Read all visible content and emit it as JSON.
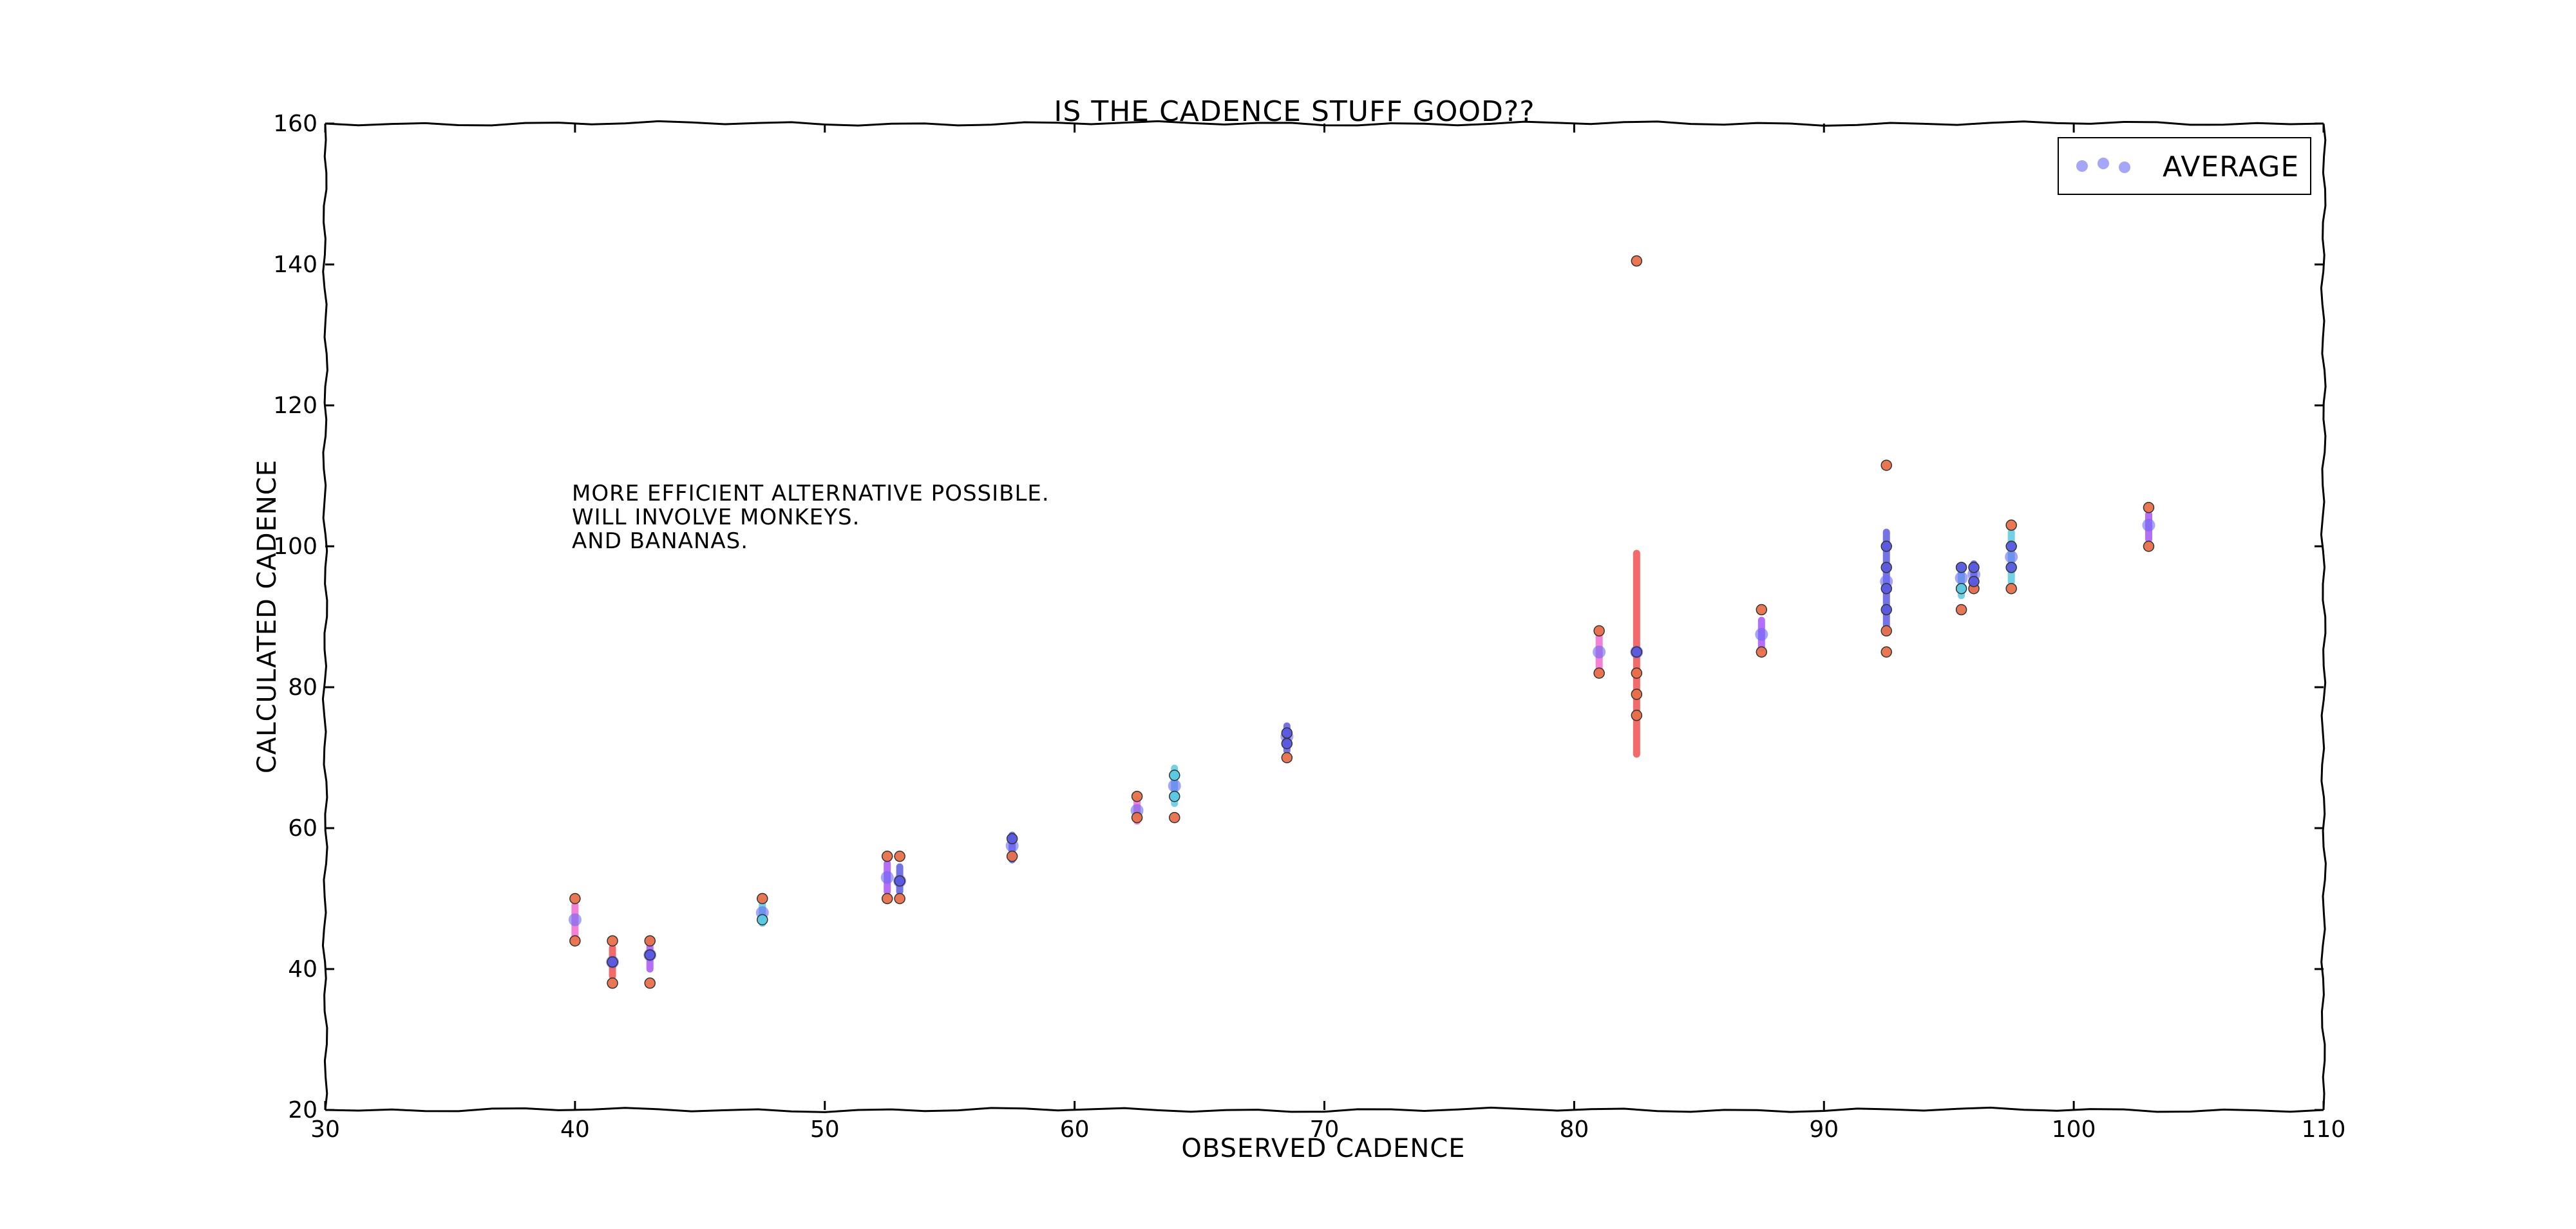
{
  "chart_data": {
    "type": "scatter",
    "title": "IS THE CADENCE STUFF GOOD??",
    "xlabel": "OBSERVED CADENCE",
    "ylabel": "CALCULATED CADENCE",
    "xlim": [
      30,
      110
    ],
    "ylim": [
      20,
      160
    ],
    "xticks": [
      "30",
      "40",
      "50",
      "60",
      "70",
      "80",
      "90",
      "100",
      "110"
    ],
    "yticks": [
      "20",
      "40",
      "60",
      "80",
      "100",
      "120",
      "140",
      "160"
    ],
    "annotation": [
      "MORE EFFICIENT ALTERNATIVE POSSIBLE.",
      "WILL INVOLVE MONKEYS.",
      "AND BANANAS."
    ],
    "legend": {
      "label": "AVERAGE",
      "position": "top-right"
    },
    "series": [
      {
        "name": "AVERAGE",
        "role": "average",
        "color": "#6a6af5",
        "points": [
          {
            "x": 40,
            "y": 47
          },
          {
            "x": 41.5,
            "y": 41
          },
          {
            "x": 43,
            "y": 42
          },
          {
            "x": 47.5,
            "y": 48
          },
          {
            "x": 52.5,
            "y": 53
          },
          {
            "x": 53,
            "y": 52.5
          },
          {
            "x": 57.5,
            "y": 57.5
          },
          {
            "x": 62.5,
            "y": 62.5
          },
          {
            "x": 64,
            "y": 66
          },
          {
            "x": 68.5,
            "y": 73
          },
          {
            "x": 81,
            "y": 85
          },
          {
            "x": 82.5,
            "y": 85
          },
          {
            "x": 87.5,
            "y": 87.5
          },
          {
            "x": 92.5,
            "y": 95
          },
          {
            "x": 95.5,
            "y": 95.5
          },
          {
            "x": 96,
            "y": 96
          },
          {
            "x": 97.5,
            "y": 98.5
          },
          {
            "x": 103,
            "y": 103
          }
        ]
      },
      {
        "name": "",
        "role": "samples",
        "color": "#e8704a",
        "points": [
          {
            "x": 40,
            "y": 50
          },
          {
            "x": 40,
            "y": 44
          },
          {
            "x": 41.5,
            "y": 44
          },
          {
            "x": 41.5,
            "y": 38
          },
          {
            "x": 43,
            "y": 44
          },
          {
            "x": 43,
            "y": 38
          },
          {
            "x": 47.5,
            "y": 50
          },
          {
            "x": 52.5,
            "y": 56
          },
          {
            "x": 52.5,
            "y": 50
          },
          {
            "x": 53,
            "y": 56
          },
          {
            "x": 53,
            "y": 50
          },
          {
            "x": 57.5,
            "y": 56
          },
          {
            "x": 62.5,
            "y": 64.5
          },
          {
            "x": 62.5,
            "y": 61.5
          },
          {
            "x": 64,
            "y": 61.5
          },
          {
            "x": 68.5,
            "y": 70
          },
          {
            "x": 81,
            "y": 88
          },
          {
            "x": 81,
            "y": 82
          },
          {
            "x": 82.5,
            "y": 140.5
          },
          {
            "x": 82.5,
            "y": 82
          },
          {
            "x": 82.5,
            "y": 79
          },
          {
            "x": 82.5,
            "y": 76
          },
          {
            "x": 87.5,
            "y": 91
          },
          {
            "x": 87.5,
            "y": 85
          },
          {
            "x": 92.5,
            "y": 111.5
          },
          {
            "x": 92.5,
            "y": 88
          },
          {
            "x": 92.5,
            "y": 85
          },
          {
            "x": 95.5,
            "y": 91
          },
          {
            "x": 96,
            "y": 94
          },
          {
            "x": 97.5,
            "y": 103
          },
          {
            "x": 97.5,
            "y": 94
          },
          {
            "x": 103,
            "y": 105.5
          },
          {
            "x": 103,
            "y": 100
          }
        ]
      },
      {
        "name": "",
        "role": "blue-samples",
        "color": "#5a5ae0",
        "points": [
          {
            "x": 41.5,
            "y": 41
          },
          {
            "x": 43,
            "y": 42
          },
          {
            "x": 53,
            "y": 52.5
          },
          {
            "x": 57.5,
            "y": 58.5
          },
          {
            "x": 68.5,
            "y": 72
          },
          {
            "x": 68.5,
            "y": 73.5
          },
          {
            "x": 82.5,
            "y": 85
          },
          {
            "x": 92.5,
            "y": 100
          },
          {
            "x": 92.5,
            "y": 97
          },
          {
            "x": 92.5,
            "y": 94
          },
          {
            "x": 92.5,
            "y": 91
          },
          {
            "x": 95.5,
            "y": 97
          },
          {
            "x": 96,
            "y": 97
          },
          {
            "x": 96,
            "y": 95
          },
          {
            "x": 97.5,
            "y": 100
          },
          {
            "x": 97.5,
            "y": 97
          }
        ]
      },
      {
        "name": "",
        "role": "cyan-samples",
        "color": "#5ac8e0",
        "points": [
          {
            "x": 47.5,
            "y": 47
          },
          {
            "x": 64,
            "y": 67.5
          },
          {
            "x": 64,
            "y": 64.5
          },
          {
            "x": 95.5,
            "y": 94
          }
        ]
      },
      {
        "name": "",
        "role": "error-bars",
        "bars": [
          {
            "x": 40,
            "low": 44.5,
            "high": 49,
            "color": "#f06bd0"
          },
          {
            "x": 41.5,
            "low": 39,
            "high": 43,
            "color": "#f05050"
          },
          {
            "x": 43,
            "low": 40,
            "high": 44,
            "color": "#a855f7"
          },
          {
            "x": 47.5,
            "low": 46.5,
            "high": 49.5,
            "color": "#5ac8e0"
          },
          {
            "x": 52.5,
            "low": 51,
            "high": 55,
            "color": "#a855f7"
          },
          {
            "x": 53,
            "low": 51,
            "high": 54.5,
            "color": "#5a5ae0"
          },
          {
            "x": 57.5,
            "low": 55.5,
            "high": 59,
            "color": "#5a5ae0"
          },
          {
            "x": 62.5,
            "low": 61,
            "high": 64,
            "color": "#f06bd0"
          },
          {
            "x": 64,
            "low": 63.5,
            "high": 68.5,
            "color": "#5ac8e0"
          },
          {
            "x": 68.5,
            "low": 71,
            "high": 74.5,
            "color": "#5a5ae0"
          },
          {
            "x": 81,
            "low": 82,
            "high": 88,
            "color": "#f06bd0"
          },
          {
            "x": 82.5,
            "low": 70.5,
            "high": 99,
            "color": "#f05050"
          },
          {
            "x": 87.5,
            "low": 85.5,
            "high": 89.5,
            "color": "#a855f7"
          },
          {
            "x": 92.5,
            "low": 88,
            "high": 102,
            "color": "#5a5ae0"
          },
          {
            "x": 95.5,
            "low": 93,
            "high": 97,
            "color": "#5ac8e0"
          },
          {
            "x": 96,
            "low": 94,
            "high": 97.5,
            "color": "#5a5ae0"
          },
          {
            "x": 97.5,
            "low": 95,
            "high": 102,
            "color": "#5ac8e0"
          },
          {
            "x": 103,
            "low": 101,
            "high": 104.5,
            "color": "#a855f7"
          }
        ]
      }
    ]
  }
}
